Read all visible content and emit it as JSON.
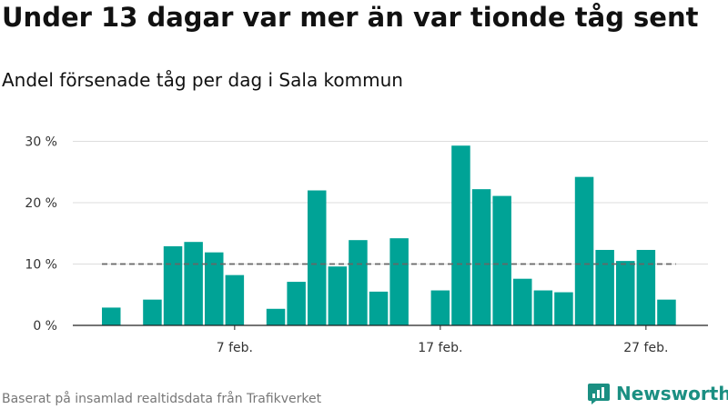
{
  "title": "Under 13 dagar var mer än var tionde tåg sent",
  "subtitle": "Andel försenade tåg per dag i Sala kommun",
  "footer": "Baserat på insamlad realtidsdata från Trafikverket",
  "brand": {
    "name": "Newsworthy",
    "icon": "newsworthy-logo-icon"
  },
  "colors": {
    "bar": "#00a396",
    "reference_line": "#666666",
    "grid": "#dddddd",
    "brand": "#1b8f82"
  },
  "chart_data": {
    "type": "bar",
    "title": "Under 13 dagar var mer än var tionde tåg sent",
    "subtitle": "Andel försenade tåg per dag i Sala kommun",
    "xlabel": "",
    "ylabel": "",
    "ylim": [
      0,
      32
    ],
    "grid": true,
    "y_ticks": [
      {
        "value": 0,
        "label": "0 %"
      },
      {
        "value": 10,
        "label": "10 %"
      },
      {
        "value": 20,
        "label": "20 %"
      },
      {
        "value": 30,
        "label": "30 %"
      }
    ],
    "x_ticks": [
      {
        "day": 7,
        "label": "7 feb."
      },
      {
        "day": 17,
        "label": "17 feb."
      },
      {
        "day": 27,
        "label": "27 feb."
      }
    ],
    "days": [
      1,
      2,
      3,
      4,
      5,
      6,
      7,
      8,
      9,
      10,
      11,
      12,
      13,
      14,
      15,
      16,
      17,
      18,
      19,
      20,
      21,
      22,
      23,
      24,
      25,
      26,
      27,
      28
    ],
    "values": [
      2.9,
      null,
      4.2,
      12.9,
      13.6,
      11.9,
      8.2,
      null,
      2.7,
      7.1,
      22.0,
      9.6,
      13.9,
      5.5,
      14.2,
      null,
      5.7,
      29.3,
      22.2,
      21.1,
      7.6,
      5.7,
      5.4,
      24.2,
      12.3,
      10.5,
      12.3,
      4.2
    ],
    "reference_line": {
      "value": 10,
      "style": "dashed"
    }
  }
}
